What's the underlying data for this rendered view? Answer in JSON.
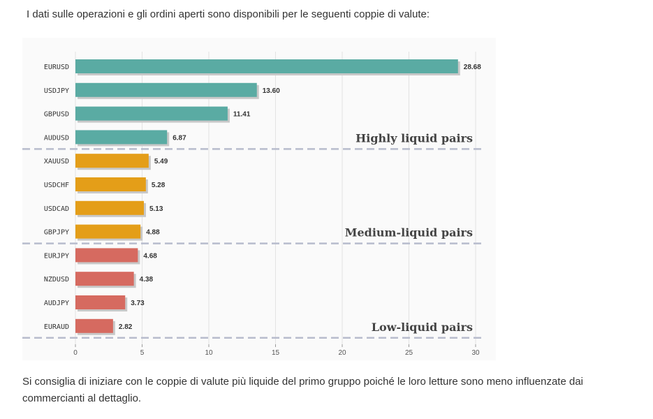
{
  "page": {
    "intro": "I dati sulle operazioni e gli ordini aperti sono disponibili per le seguenti coppie di valute:",
    "outro": "Si consiglia di iniziare con le coppie di valute più liquide del primo gruppo poiché le loro letture sono meno influenzate dai commercianti al dettaglio."
  },
  "chart_data": {
    "type": "bar",
    "orientation": "horizontal",
    "title": "",
    "xlabel": "",
    "ylabel": "",
    "xlim": [
      0,
      30
    ],
    "xticks": [
      0,
      5,
      10,
      15,
      20,
      25,
      30
    ],
    "grid": "vertical",
    "categories": [
      "EURUSD",
      "USDJPY",
      "GBPUSD",
      "AUDUSD",
      "XAUUSD",
      "USDCHF",
      "USDCAD",
      "GBPJPY",
      "EURJPY",
      "NZDUSD",
      "AUDJPY",
      "EURAUD"
    ],
    "values": [
      28.68,
      13.6,
      11.41,
      6.87,
      5.49,
      5.28,
      5.13,
      4.88,
      4.68,
      4.38,
      3.73,
      2.82
    ],
    "value_labels": [
      "28.68",
      "13.60",
      "11.41",
      "6.87",
      "5.49",
      "5.28",
      "5.13",
      "4.88",
      "4.68",
      "4.38",
      "3.73",
      "2.82"
    ],
    "groups": [
      {
        "label": "Highly liquid pairs",
        "start": 0,
        "end": 3,
        "color": "#5aaba3"
      },
      {
        "label": "Medium-liquid pairs",
        "start": 4,
        "end": 7,
        "color": "#e49e18"
      },
      {
        "label": "Low-liquid pairs",
        "start": 8,
        "end": 11,
        "color": "#d66a60"
      }
    ],
    "colors": {
      "shadow": "#c8c8c8",
      "separator": "#b8bccd",
      "grid": "#e3e3e3",
      "axis": "#999999"
    }
  }
}
